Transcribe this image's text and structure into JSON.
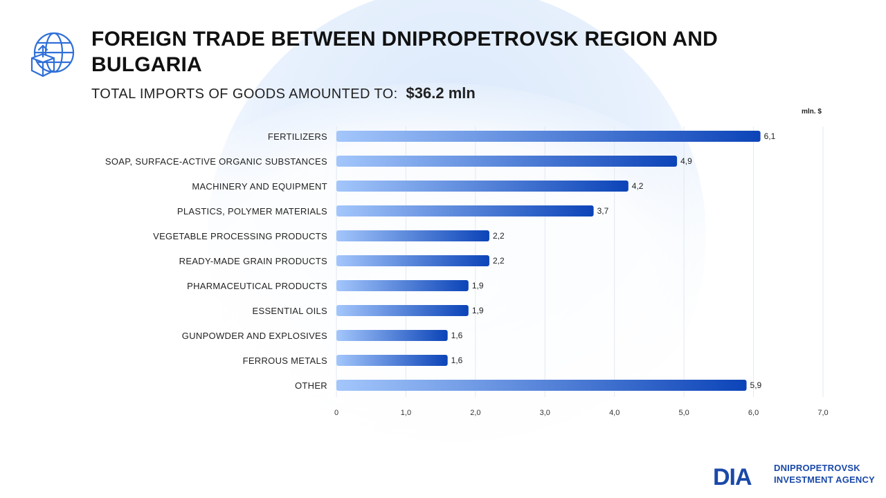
{
  "header": {
    "title": "FOREIGN TRADE BETWEEN DNIPROPETROVSK REGION AND BULGARIA",
    "subtitle_label": "TOTAL IMPORTS OF GOODS AMOUNTED TO:",
    "subtitle_value": "$36.2  mln",
    "icon": "globe-with-box-icon"
  },
  "chart_data": {
    "type": "bar",
    "orientation": "horizontal",
    "unit": "mln. $",
    "categories": [
      "FERTILIZERS",
      "SOAP, SURFACE-ACTIVE ORGANIC SUBSTANCES",
      "MACHINERY AND EQUIPMENT",
      "PLASTICS, POLYMER MATERIALS",
      "VEGETABLE PROCESSING PRODUCTS",
      "READY-MADE GRAIN PRODUCTS",
      "PHARMACEUTICAL PRODUCTS",
      "ESSENTIAL OILS",
      "GUNPOWDER AND EXPLOSIVES",
      "FERROUS METALS",
      "OTHER"
    ],
    "values": [
      6.1,
      4.9,
      4.2,
      3.7,
      2.2,
      2.2,
      1.9,
      1.9,
      1.6,
      1.6,
      5.9
    ],
    "value_labels": [
      "6,1",
      "4,9",
      "4,2",
      "3,7",
      "2,2",
      "2,2",
      "1,9",
      "1,9",
      "1,6",
      "1,6",
      "5,9"
    ],
    "xlim": [
      0,
      7
    ],
    "x_ticks": [
      0,
      1,
      2,
      3,
      4,
      5,
      6,
      7
    ],
    "x_tick_labels": [
      "0",
      "1,0",
      "2,0",
      "3,0",
      "4,0",
      "5,0",
      "6,0",
      "7,0"
    ],
    "grid": true,
    "colors": {
      "bar_start": "#a3c6fb",
      "bar_end": "#0c44b8",
      "grid": "#e2e8f0"
    }
  },
  "logo": {
    "mark": "DIA",
    "line1": "DNIPROPETROVSK",
    "line2": "INVESTMENT AGENCY",
    "color": "#1a49a8"
  }
}
